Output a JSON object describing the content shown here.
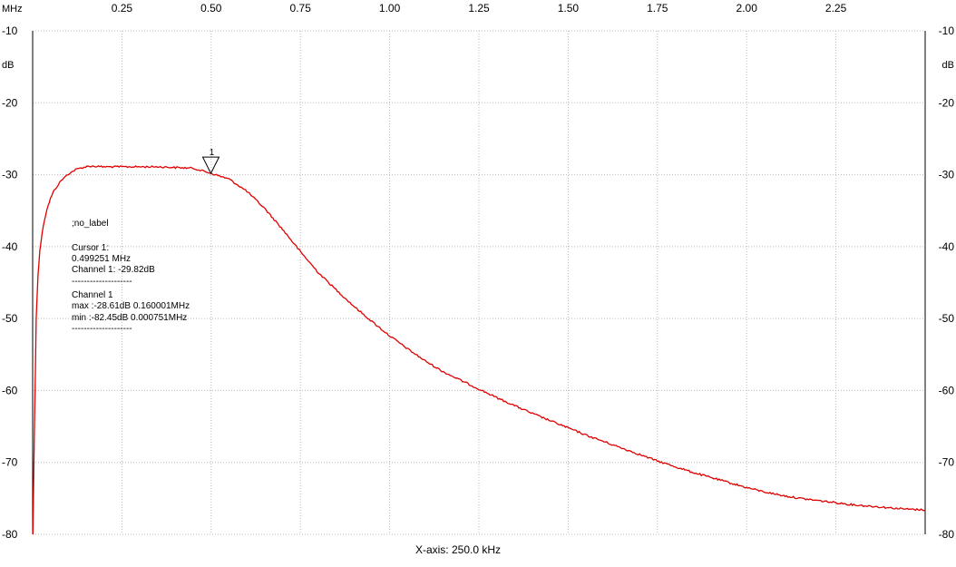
{
  "chart_data": {
    "type": "line",
    "x_unit_label": "MHz",
    "y_unit_label": "dB",
    "xlim": [
      0,
      2.5
    ],
    "ylim": [
      -80,
      -10
    ],
    "x_ticks": [
      {
        "value": 0.25,
        "label": "0.25"
      },
      {
        "value": 0.5,
        "label": "0.50"
      },
      {
        "value": 0.75,
        "label": "0.75"
      },
      {
        "value": 1.0,
        "label": "1.00"
      },
      {
        "value": 1.25,
        "label": "1.25"
      },
      {
        "value": 1.5,
        "label": "1.50"
      },
      {
        "value": 1.75,
        "label": "1.75"
      },
      {
        "value": 2.0,
        "label": "2.00"
      },
      {
        "value": 2.25,
        "label": "2.25"
      }
    ],
    "y_ticks": [
      {
        "value": -10,
        "label": "-10"
      },
      {
        "value": -20,
        "label": "-20"
      },
      {
        "value": -30,
        "label": "-30"
      },
      {
        "value": -40,
        "label": "-40"
      },
      {
        "value": -50,
        "label": "-50"
      },
      {
        "value": -60,
        "label": "-60"
      },
      {
        "value": -70,
        "label": "-70"
      },
      {
        "value": -80,
        "label": "-80"
      }
    ],
    "grid": true,
    "x_axis_caption": "X-axis: 250.0 kHz",
    "series": [
      {
        "color": "#e00000",
        "x": [
          0.0008,
          0.005,
          0.01,
          0.015,
          0.02,
          0.03,
          0.04,
          0.05,
          0.06,
          0.08,
          0.1,
          0.12,
          0.14,
          0.16,
          0.2,
          0.25,
          0.3,
          0.35,
          0.4,
          0.45,
          0.499,
          0.55,
          0.6,
          0.65,
          0.7,
          0.75,
          0.8,
          0.85,
          0.9,
          0.95,
          1.0,
          1.05,
          1.1,
          1.15,
          1.2,
          1.25,
          1.3,
          1.35,
          1.4,
          1.45,
          1.5,
          1.55,
          1.6,
          1.65,
          1.7,
          1.75,
          1.8,
          1.85,
          1.9,
          1.95,
          2.0,
          2.05,
          2.1,
          2.15,
          2.2,
          2.25,
          2.3,
          2.35,
          2.4,
          2.45,
          2.5
        ],
        "y": [
          -80.0,
          -65.0,
          -50.0,
          -44.0,
          -40.5,
          -37.0,
          -34.8,
          -33.3,
          -32.2,
          -30.8,
          -29.9,
          -29.3,
          -29.0,
          -28.8,
          -28.9,
          -28.9,
          -28.9,
          -28.9,
          -29.0,
          -29.1,
          -29.8,
          -30.6,
          -32.3,
          -34.7,
          -37.6,
          -40.7,
          -43.6,
          -46.0,
          -48.3,
          -50.4,
          -52.4,
          -54.2,
          -55.9,
          -57.4,
          -58.6,
          -59.8,
          -61.0,
          -62.1,
          -63.2,
          -64.2,
          -65.2,
          -66.2,
          -67.1,
          -68.0,
          -68.9,
          -69.8,
          -70.6,
          -71.4,
          -72.1,
          -72.8,
          -73.5,
          -74.1,
          -74.6,
          -75.0,
          -75.3,
          -75.6,
          -75.9,
          -76.1,
          -76.3,
          -76.5,
          -76.6
        ]
      }
    ],
    "cursor": {
      "label": "1",
      "x": 0.499251,
      "y": -29.82
    }
  },
  "info_panel": {
    "title": ";no_label",
    "cursor_heading": "Cursor 1:",
    "cursor_freq": "0.499251 MHz",
    "cursor_value": "Channel 1: -29.82dB",
    "separator1": "--------------------",
    "channel_heading": "Channel 1",
    "max_line": "max :-28.61dB 0.160001MHz",
    "min_line": "min :-82.45dB 0.000751MHz",
    "separator2": "--------------------"
  }
}
